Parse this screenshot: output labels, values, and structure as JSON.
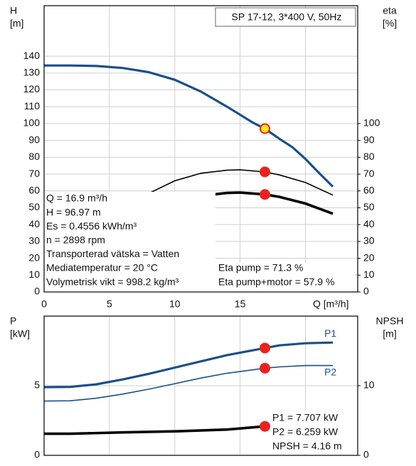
{
  "chart_data": [
    {
      "type": "line",
      "title": "SP 17-12, 3*400 V, 50Hz",
      "y_label": [
        "H",
        "[m]"
      ],
      "y2_label": [
        "eta",
        "[%]"
      ],
      "x_label": "Q [m³/h]",
      "xlim": [
        0,
        24
      ],
      "xticks": [
        0,
        5,
        10,
        15
      ],
      "xgrid": [
        5,
        10,
        15,
        20
      ],
      "ylim": [
        0,
        170
      ],
      "yticks": [
        0,
        10,
        20,
        30,
        40,
        50,
        60,
        70,
        80,
        90,
        100,
        110,
        120,
        130,
        140
      ],
      "y2lim": [
        0,
        170
      ],
      "y2ticks": [
        0,
        10,
        20,
        30,
        40,
        50,
        60,
        70,
        80,
        90,
        100
      ],
      "grid": true,
      "duty_x": 16.9,
      "series": [
        {
          "color": "#1a4f8a",
          "width": 3.2,
          "marker": "#ffe81a",
          "x": [
            0,
            2,
            4,
            6,
            8,
            10,
            12,
            14,
            16,
            16.9,
            18,
            19,
            20,
            21,
            22.1
          ],
          "values": [
            134.5,
            134.5,
            134.2,
            133,
            130.5,
            126,
            119,
            110,
            100.5,
            96.97,
            91,
            86,
            79,
            71,
            62.5
          ]
        },
        {
          "color": "#000000",
          "width": 1.6,
          "marker": "#e8231f",
          "axis": "y2",
          "x": [
            8,
            10,
            12,
            14,
            15,
            16.9,
            18,
            20,
            22.1
          ],
          "values": [
            58.5,
            66,
            70.5,
            72.3,
            72.5,
            71.3,
            69.5,
            65,
            57.5
          ]
        },
        {
          "color": "#000000",
          "width": 3.6,
          "marker": "#e8231f",
          "axis": "y2",
          "x": [
            12.5,
            14,
            15,
            16.9,
            18,
            20,
            22.1
          ],
          "values": [
            57.5,
            58.8,
            59,
            57.9,
            56.5,
            52.5,
            46.5
          ]
        }
      ],
      "info": [
        "Q = 16.9 m³/h",
        "H = 96.97 m",
        "Es = 0.4556 kWh/m³",
        "n = 2898 rpm",
        "Transporterad vätska = Vatten",
        "Mediatemperatur = 20 °C",
        "Volymetrisk vikt = 998.2 kg/m³"
      ],
      "info_right": [
        "Eta pump = 71.3 %",
        "Eta pump+motor = 57.9 %"
      ]
    },
    {
      "type": "line",
      "y_label": [
        "P",
        "[kW]"
      ],
      "y2_label": [
        "NPSH",
        "[m]"
      ],
      "xlim": [
        0,
        24
      ],
      "xgrid": [
        5,
        10,
        15,
        20
      ],
      "ylim": [
        0,
        10
      ],
      "yticks": [
        0,
        5
      ],
      "y2lim": [
        0,
        20
      ],
      "y2ticks": [
        0,
        10
      ],
      "grid": true,
      "duty_x": 16.9,
      "series": [
        {
          "name": "P1",
          "color": "#1a4f8a",
          "width": 3.2,
          "marker": "#e8231f",
          "x": [
            0,
            2,
            4,
            6,
            8,
            10,
            12,
            14,
            16.9,
            18,
            20,
            22.1
          ],
          "values": [
            4.9,
            4.92,
            5.1,
            5.45,
            5.85,
            6.3,
            6.75,
            7.2,
            7.707,
            7.9,
            8.05,
            8.1
          ]
        },
        {
          "name": "P2",
          "color": "#1a4f8a",
          "width": 1.6,
          "marker": "#e8231f",
          "x": [
            0,
            2,
            4,
            6,
            8,
            10,
            12,
            14,
            16.9,
            18,
            20,
            22.1
          ],
          "values": [
            3.9,
            3.92,
            4.1,
            4.4,
            4.75,
            5.15,
            5.55,
            5.9,
            6.259,
            6.35,
            6.45,
            6.45
          ]
        },
        {
          "color": "#000000",
          "width": 3.6,
          "marker": "#e8231f",
          "axis": "y2",
          "x": [
            0,
            2,
            6,
            10,
            14,
            16.9
          ],
          "values": [
            3.1,
            3.1,
            3.3,
            3.45,
            3.7,
            4.16
          ]
        }
      ],
      "info": [
        "P1 = 7.707 kW",
        "P2 = 6.259 kW",
        "NPSH = 4.16 m"
      ]
    }
  ]
}
